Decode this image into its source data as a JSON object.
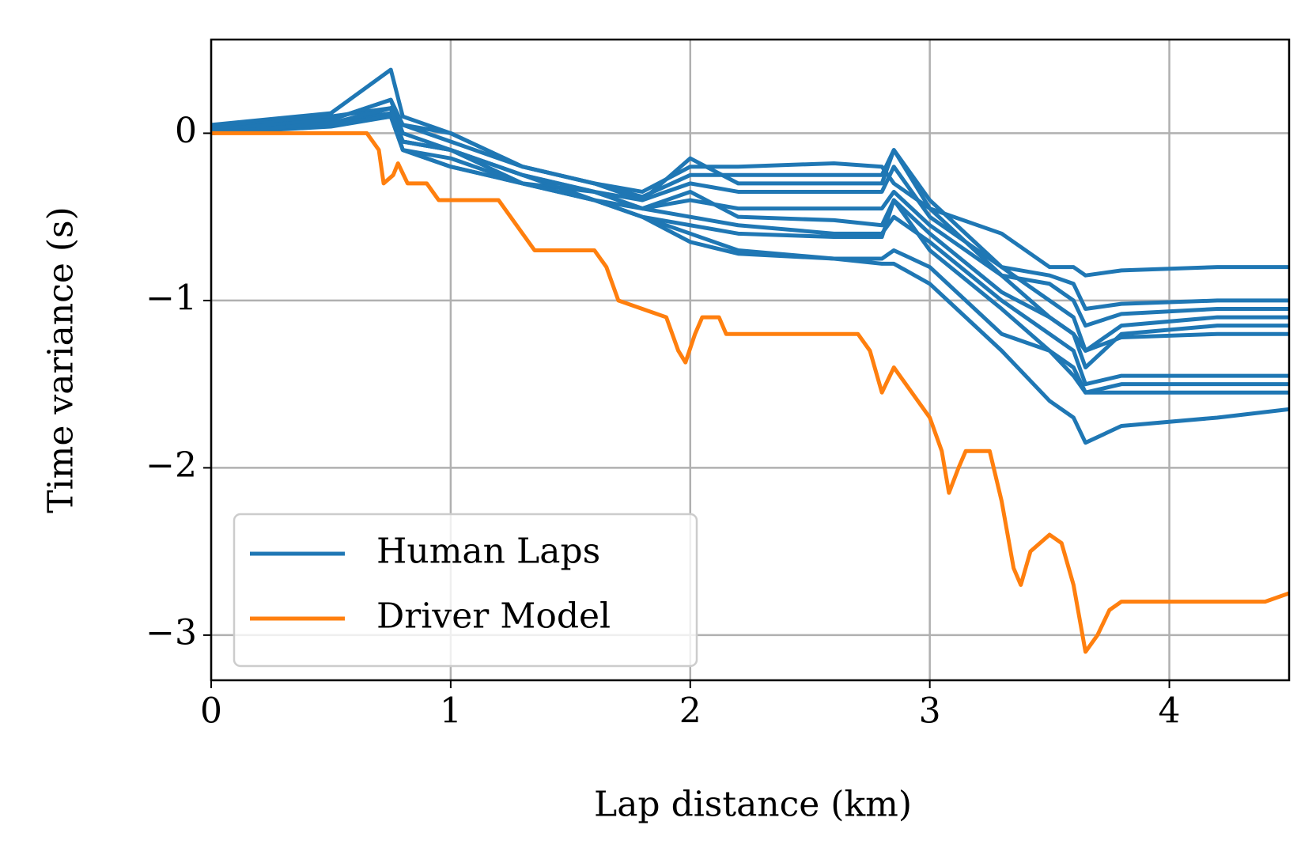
{
  "chart_data": {
    "type": "line",
    "xlabel": "Lap distance (km)",
    "ylabel": "Time variance (s)",
    "x": [
      0,
      0.5,
      0.75,
      0.8,
      1.0,
      1.3,
      1.6,
      1.8,
      2.0,
      2.2,
      2.6,
      2.8,
      2.85,
      3.0,
      3.3,
      3.5,
      3.6,
      3.65,
      3.8,
      4.2,
      4.5
    ],
    "xlim": [
      0,
      4.5
    ],
    "xticks": [
      0,
      1,
      2,
      3,
      4
    ],
    "ylim": [
      -3.27,
      0.56
    ],
    "yticks": [
      {
        "value": -3,
        "label": "−3"
      },
      {
        "value": -2,
        "label": "−2"
      },
      {
        "value": -1,
        "label": "−1"
      },
      0
    ],
    "grid": true,
    "legend": "lower left",
    "series": [
      {
        "name": "Human Laps",
        "color": "#1f77b4",
        "values": [
          0.05,
          0.12,
          0.38,
          0.1,
          0.0,
          -0.2,
          -0.3,
          -0.35,
          -0.2,
          -0.2,
          -0.18,
          -0.2,
          -0.3,
          -0.45,
          -0.6,
          -0.8,
          -0.8,
          -0.85,
          -0.82,
          -0.8,
          -0.8
        ]
      },
      {
        "color": "#1f77b4",
        "values": [
          0.03,
          0.1,
          0.15,
          0.05,
          -0.05,
          -0.2,
          -0.3,
          -0.4,
          -0.15,
          -0.3,
          -0.3,
          -0.3,
          -0.1,
          -0.4,
          -0.8,
          -0.85,
          -0.9,
          -1.05,
          -1.02,
          -1.0,
          -1.0
        ]
      },
      {
        "color": "#1f77b4",
        "values": [
          0.02,
          0.08,
          0.2,
          0.0,
          -0.1,
          -0.25,
          -0.35,
          -0.4,
          -0.3,
          -0.35,
          -0.35,
          -0.35,
          -0.2,
          -0.5,
          -0.8,
          -1.0,
          -1.1,
          -1.3,
          -1.15,
          -1.1,
          -1.1
        ]
      },
      {
        "color": "#1f77b4",
        "values": [
          0.0,
          0.05,
          0.1,
          -0.05,
          -0.1,
          -0.3,
          -0.4,
          -0.45,
          -0.4,
          -0.45,
          -0.45,
          -0.45,
          -0.35,
          -0.55,
          -0.85,
          -1.1,
          -1.2,
          -1.3,
          -1.22,
          -1.2,
          -1.2
        ]
      },
      {
        "color": "#1f77b4",
        "values": [
          0.0,
          0.06,
          0.12,
          -0.1,
          -0.15,
          -0.3,
          -0.35,
          -0.45,
          -0.5,
          -0.55,
          -0.6,
          -0.6,
          -0.5,
          -0.65,
          -1.0,
          -1.2,
          -1.3,
          -1.5,
          -1.45,
          -1.45,
          -1.45
        ]
      },
      {
        "color": "#1f77b4",
        "values": [
          0.0,
          0.05,
          0.15,
          -0.05,
          -0.1,
          -0.25,
          -0.4,
          -0.5,
          -0.55,
          -0.6,
          -0.62,
          -0.62,
          -0.4,
          -0.7,
          -1.05,
          -1.3,
          -1.4,
          -1.55,
          -1.5,
          -1.5,
          -1.5
        ]
      },
      {
        "color": "#1f77b4",
        "values": [
          0.0,
          0.04,
          0.1,
          -0.1,
          -0.2,
          -0.3,
          -0.4,
          -0.5,
          -0.6,
          -0.7,
          -0.75,
          -0.75,
          -0.7,
          -0.8,
          -1.2,
          -1.3,
          -1.45,
          -1.55,
          -1.55,
          -1.55,
          -1.55
        ]
      },
      {
        "color": "#1f77b4",
        "values": [
          0.0,
          0.05,
          0.1,
          -0.1,
          -0.2,
          -0.3,
          -0.4,
          -0.5,
          -0.65,
          -0.72,
          -0.75,
          -0.78,
          -0.78,
          -0.9,
          -1.3,
          -1.6,
          -1.7,
          -1.85,
          -1.75,
          -1.7,
          -1.65
        ]
      },
      {
        "color": "#1f77b4",
        "values": [
          0.02,
          0.08,
          0.2,
          0.05,
          0.0,
          -0.2,
          -0.3,
          -0.38,
          -0.25,
          -0.25,
          -0.25,
          -0.25,
          -0.1,
          -0.45,
          -0.85,
          -0.9,
          -1.0,
          -1.15,
          -1.08,
          -1.05,
          -1.05
        ]
      },
      {
        "color": "#1f77b4",
        "values": [
          0.0,
          0.06,
          0.15,
          -0.05,
          -0.1,
          -0.25,
          -0.35,
          -0.45,
          -0.35,
          -0.5,
          -0.52,
          -0.55,
          -0.4,
          -0.6,
          -0.95,
          -1.1,
          -1.2,
          -1.4,
          -1.2,
          -1.15,
          -1.15
        ]
      },
      {
        "name": "Driver Model",
        "color": "#ff7f0e",
        "x": [
          0,
          0.65,
          0.7,
          0.72,
          0.76,
          0.78,
          0.82,
          0.9,
          0.95,
          1.2,
          1.25,
          1.3,
          1.35,
          1.6,
          1.65,
          1.7,
          1.8,
          1.9,
          1.95,
          1.98,
          2.02,
          2.05,
          2.12,
          2.15,
          2.7,
          2.75,
          2.8,
          2.85,
          2.95,
          3.0,
          3.05,
          3.08,
          3.12,
          3.15,
          3.25,
          3.3,
          3.35,
          3.38,
          3.42,
          3.5,
          3.55,
          3.6,
          3.65,
          3.7,
          3.75,
          3.8,
          4.4,
          4.5
        ],
        "values": [
          0,
          0,
          -0.1,
          -0.3,
          -0.25,
          -0.18,
          -0.3,
          -0.3,
          -0.4,
          -0.4,
          -0.5,
          -0.6,
          -0.7,
          -0.7,
          -0.8,
          -1.0,
          -1.05,
          -1.1,
          -1.3,
          -1.37,
          -1.2,
          -1.1,
          -1.1,
          -1.2,
          -1.2,
          -1.3,
          -1.55,
          -1.4,
          -1.6,
          -1.7,
          -1.9,
          -2.15,
          -2.0,
          -1.9,
          -1.9,
          -2.2,
          -2.6,
          -2.7,
          -2.5,
          -2.4,
          -2.45,
          -2.7,
          -3.1,
          -3.0,
          -2.85,
          -2.8,
          -2.8,
          -2.75
        ]
      }
    ]
  }
}
